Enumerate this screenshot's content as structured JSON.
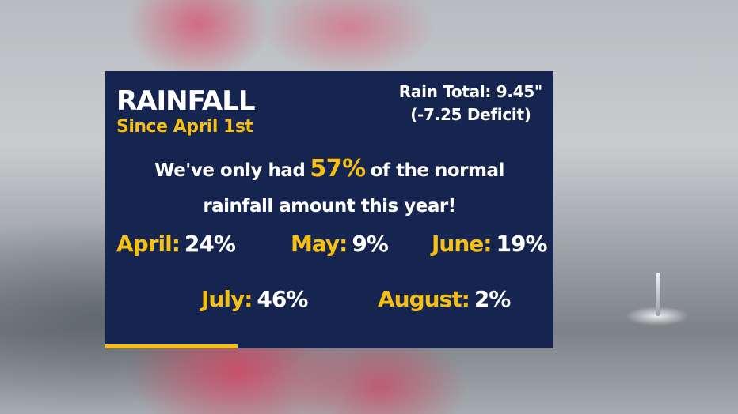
{
  "graphic": {
    "title": "RAINFALL",
    "subtitle": "Since April 1st",
    "rain_total": "Rain Total: 9.45\"",
    "deficit": "(-7.25 Deficit)",
    "message": {
      "before": "We've only had",
      "percent": "57%",
      "after": "of the normal",
      "line2": "rainfall amount this year!"
    },
    "months": [
      {
        "label": "April:",
        "value": "24%"
      },
      {
        "label": "May:",
        "value": "9%"
      },
      {
        "label": "June:",
        "value": "19%"
      },
      {
        "label": "July:",
        "value": "46%"
      },
      {
        "label": "August:",
        "value": "2%"
      }
    ]
  },
  "colors": {
    "panel_background": "#16254f",
    "accent_yellow": "#f6bf15",
    "text_white": "#ffffff"
  }
}
